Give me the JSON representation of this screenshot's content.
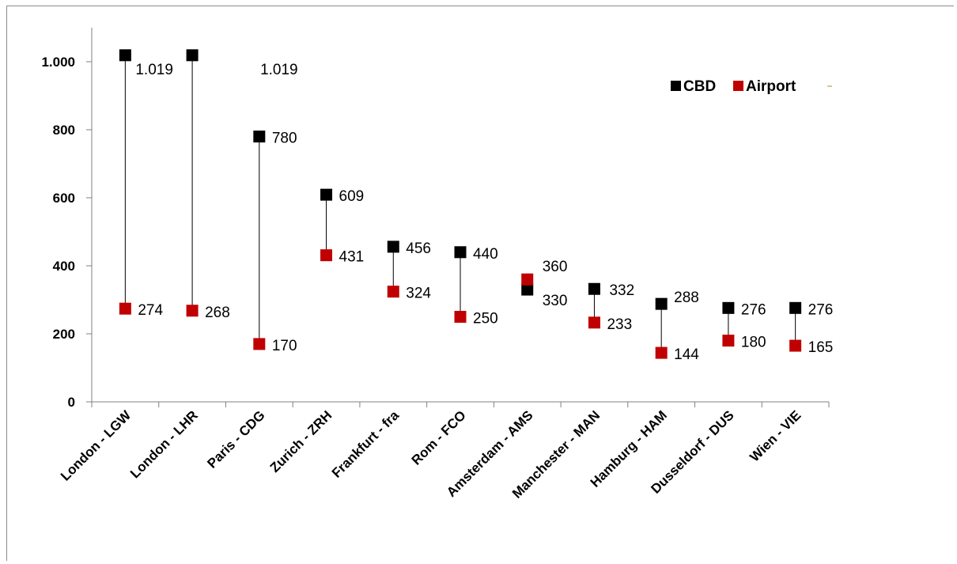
{
  "chart_data": {
    "type": "scatter",
    "title": "",
    "xlabel": "",
    "ylabel": "",
    "ylim": [
      0,
      1100
    ],
    "yticks": [
      0,
      200,
      400,
      600,
      800,
      1000
    ],
    "ytick_labels": [
      "0",
      "200",
      "400",
      "600",
      "800",
      "1.000"
    ],
    "grid": false,
    "legend_position": "top-right",
    "categories": [
      "London - LGW",
      "London - LHR",
      "Paris - CDG",
      "Zurich - ZRH",
      "Frankfurt - fra",
      "Rom - FCO",
      "Amsterdam - AMS",
      "Manchester - MAN",
      "Hamburg - HAM",
      "Dusseldorf - DUS",
      "Wien - VIE"
    ],
    "series": [
      {
        "name": "CBD",
        "color": "#000000",
        "values": [
          1019,
          1019,
          780,
          609,
          456,
          440,
          330,
          332,
          288,
          276,
          276
        ],
        "labels": [
          "1.019",
          "1.019",
          "780",
          "609",
          "456",
          "440",
          "330",
          "332",
          "288",
          "276",
          "276"
        ]
      },
      {
        "name": "Airport",
        "color": "#c00000",
        "values": [
          274,
          268,
          170,
          431,
          324,
          250,
          360,
          233,
          144,
          180,
          165
        ],
        "labels": [
          "274",
          "268",
          "170",
          "431",
          "324",
          "250",
          "360",
          "233",
          "144",
          "180",
          "165"
        ]
      }
    ],
    "connector_color": "#000000"
  },
  "legend": {
    "items": [
      {
        "label": "CBD",
        "color": "#000000"
      },
      {
        "label": "Airport",
        "color": "#c00000"
      }
    ],
    "extra_marker_color": "#c8b46a"
  }
}
